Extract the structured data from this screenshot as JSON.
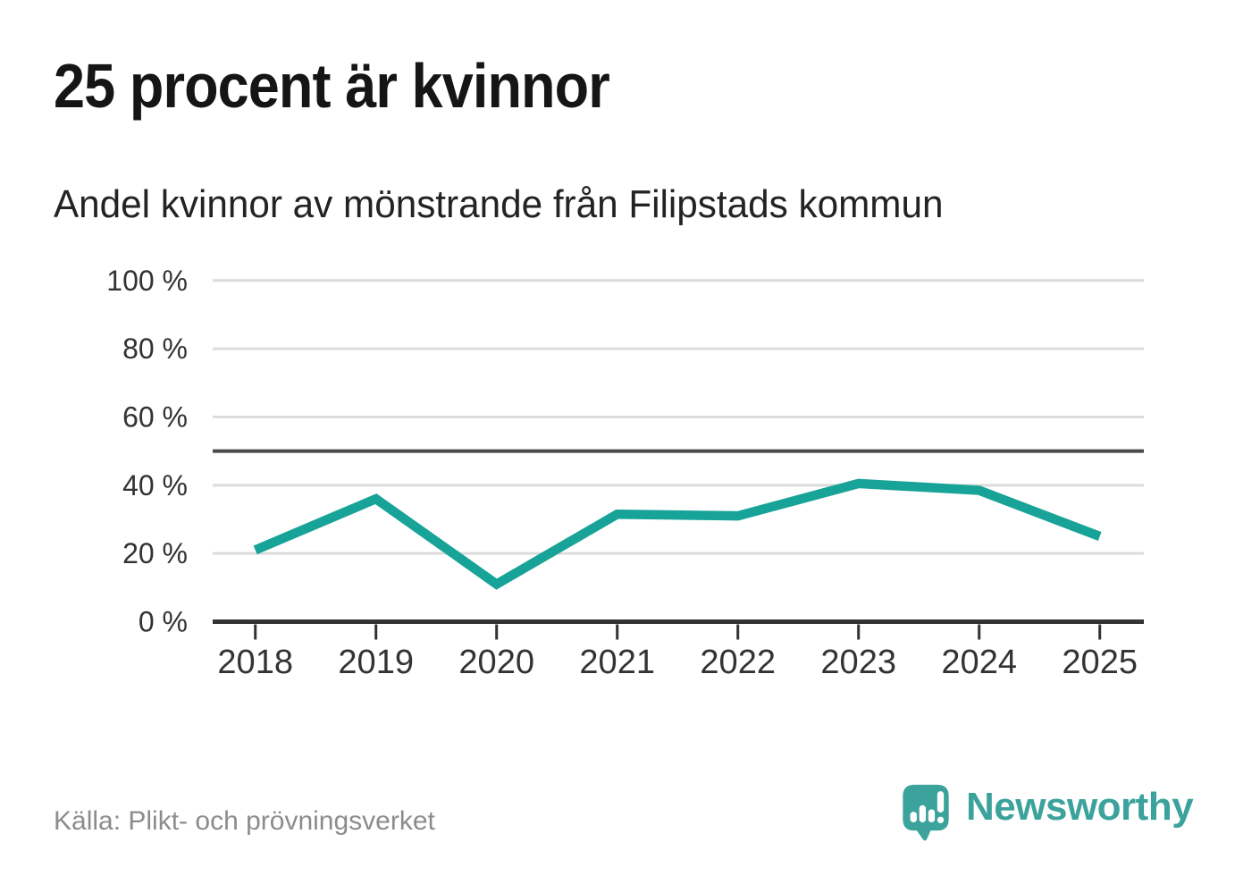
{
  "header": {
    "title": "25 procent är kvinnor",
    "subtitle": "Andel kvinnor av mönstrande från Filipstads kommun"
  },
  "footer": {
    "source": "Källa: Plikt- och prövningsverket",
    "logo_text": "Newsworthy",
    "logo_icon": "speech-bubble-with-bar-chart-and-exclamation"
  },
  "colors": {
    "accent": "#17A398",
    "logo": "#3BA39C",
    "grid": "#DCDCDC",
    "axis": "#333333",
    "reference": "#4A4A4A",
    "ink": "#151515",
    "ink2": "#232323",
    "muted": "#8C8C8C",
    "background": "#FFFFFF"
  },
  "chart_data": {
    "type": "line",
    "title": "25 procent är kvinnor",
    "subtitle": "Andel kvinnor av mönstrande från Filipstads kommun",
    "source": "Källa: Plikt- och prövningsverket",
    "x_categories": [
      "2018",
      "2019",
      "2020",
      "2021",
      "2022",
      "2023",
      "2024",
      "2025"
    ],
    "series": [
      {
        "name": "Andel kvinnor av mönstrande",
        "values": [
          21,
          36,
          11,
          31.5,
          31,
          40.5,
          38.5,
          25
        ]
      }
    ],
    "unit": "%",
    "ylim": [
      0,
      100
    ],
    "yticks": [
      0,
      20,
      40,
      60,
      80,
      100
    ],
    "ytick_label_format": "{v} %",
    "reference_line_y": 50,
    "grid": "horizontal",
    "legend": "none",
    "line_color": "#17A398"
  }
}
